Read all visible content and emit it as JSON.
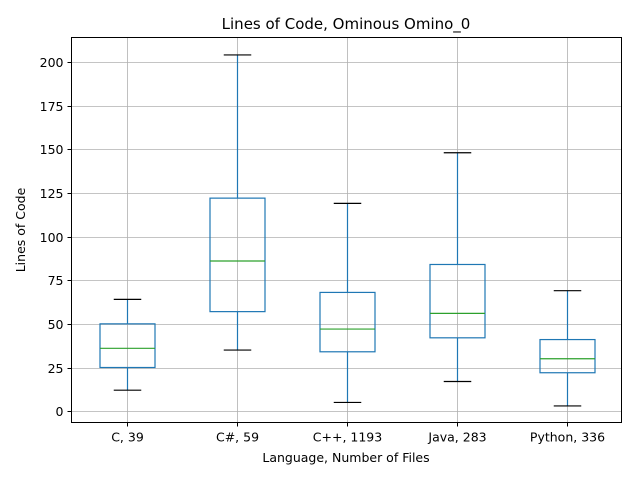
{
  "chart_data": {
    "type": "box",
    "title": "Lines of Code, Ominous Omino_0",
    "xlabel": "Language, Number of Files",
    "ylabel": "Lines of Code",
    "ylim": [
      -6.5,
      214
    ],
    "yticks": [
      0,
      25,
      50,
      75,
      100,
      125,
      150,
      175,
      200
    ],
    "grid": true,
    "colors": {
      "box": "#1f77b4",
      "median": "#2ca02c",
      "cap": "#000000",
      "grid": "#b0b0b0"
    },
    "categories": [
      "C, 39",
      "C#, 59",
      "C++, 1193",
      "Java, 283",
      "Python, 336"
    ],
    "boxes": [
      {
        "whisker_low": 12,
        "q1": 25,
        "median": 36,
        "q3": 50,
        "whisker_high": 64
      },
      {
        "whisker_low": 35,
        "q1": 57,
        "median": 86,
        "q3": 122,
        "whisker_high": 204
      },
      {
        "whisker_low": 5,
        "q1": 34,
        "median": 47,
        "q3": 68,
        "whisker_high": 119
      },
      {
        "whisker_low": 17,
        "q1": 42,
        "median": 56,
        "q3": 84,
        "whisker_high": 148
      },
      {
        "whisker_low": 3,
        "q1": 22,
        "median": 30,
        "q3": 41,
        "whisker_high": 69
      }
    ]
  }
}
